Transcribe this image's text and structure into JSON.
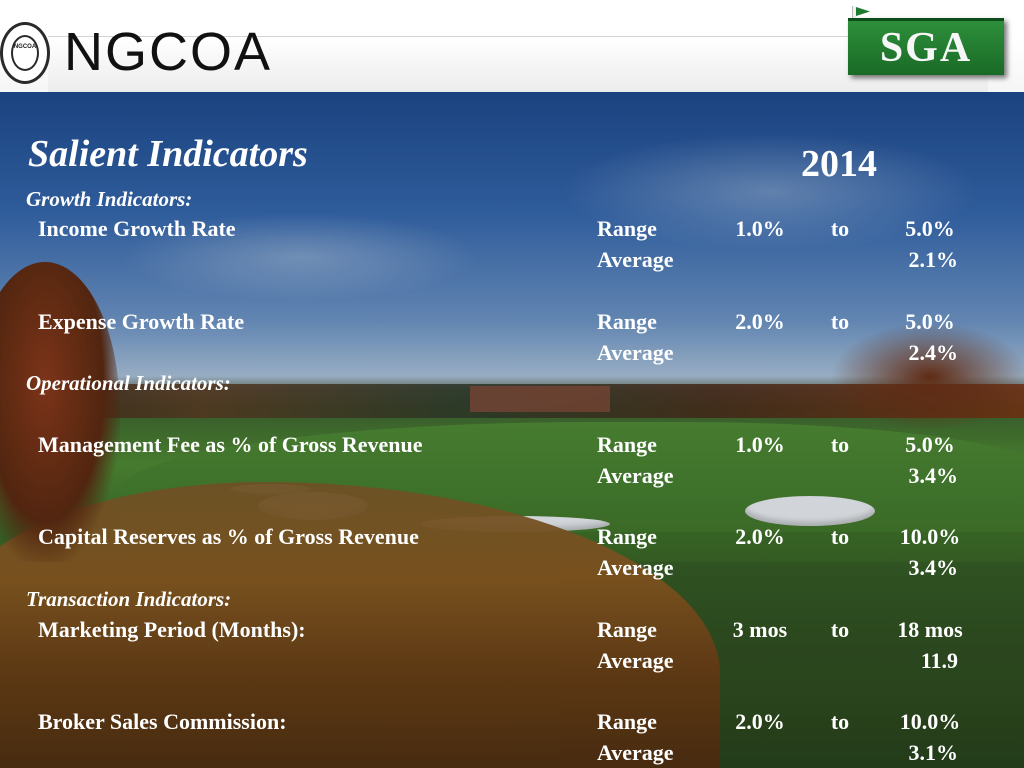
{
  "header": {
    "brand": "NGCOA",
    "seal_text": "NGCOA",
    "sga_label": "SGA"
  },
  "slide": {
    "title": "Salient Indicators",
    "year": "2014",
    "sections": [
      {
        "heading": "Growth Indicators:",
        "rows": [
          {
            "label": "Income Growth Rate",
            "range_word": "Range",
            "low": "1.0%",
            "to_word": "to",
            "high": "5.0%",
            "average_word": "Average",
            "average": "2.1%"
          },
          {
            "label": "Expense Growth Rate",
            "range_word": "Range",
            "low": "2.0%",
            "to_word": "to",
            "high": "5.0%",
            "average_word": "Average",
            "average": "2.4%"
          }
        ]
      },
      {
        "heading": "Operational Indicators:",
        "rows": [
          {
            "label": "Management Fee as % of Gross Revenue",
            "range_word": "Range",
            "low": "1.0%",
            "to_word": "to",
            "high": "5.0%",
            "average_word": "Average",
            "average": "3.4%"
          },
          {
            "label": "Capital Reserves as % of Gross Revenue",
            "range_word": "Range",
            "low": "2.0%",
            "to_word": "to",
            "high": "10.0%",
            "average_word": "Average",
            "average": "3.4%"
          }
        ]
      },
      {
        "heading": "Transaction Indicators:",
        "rows": [
          {
            "label": "Marketing Period (Months):",
            "range_word": "Range",
            "low": "3 mos",
            "to_word": "to",
            "high": "18 mos",
            "average_word": "Average",
            "average": "11.9"
          },
          {
            "label": "Broker Sales Commission:",
            "range_word": "Range",
            "low": "2.0%",
            "to_word": "to",
            "high": "10.0%",
            "average_word": "Average",
            "average": "3.1%"
          }
        ]
      }
    ]
  },
  "colors": {
    "text": "#ffffff",
    "sga_green": "#1f7a2e",
    "brand_dark": "#111111"
  }
}
